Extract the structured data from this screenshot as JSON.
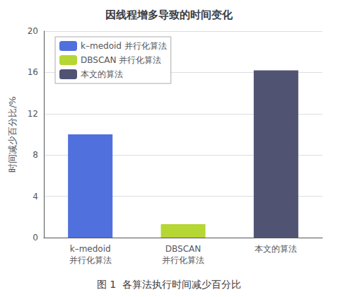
{
  "chart_data": {
    "type": "bar",
    "title": "因线程增多导致的时间变化",
    "caption": "图 1  各算法执行时间减少百分比",
    "ylabel": "时间减少百分比/%",
    "categories": [
      "k–medoid\n并行化算法",
      "DBSCAN\n并行化算法",
      "本文的算法"
    ],
    "series": [
      {
        "name": "k–medoid 并行化算法",
        "values": [
          10.0,
          null,
          null
        ]
      },
      {
        "name": "DBSCAN 并行化算法",
        "values": [
          null,
          1.3,
          null
        ]
      },
      {
        "name": "本文的算法",
        "values": [
          null,
          null,
          16.2
        ]
      }
    ],
    "ylim": [
      0,
      20
    ],
    "yticks": [
      0,
      4,
      8,
      12,
      16,
      20
    ],
    "grid": true,
    "legend": "upper left"
  }
}
